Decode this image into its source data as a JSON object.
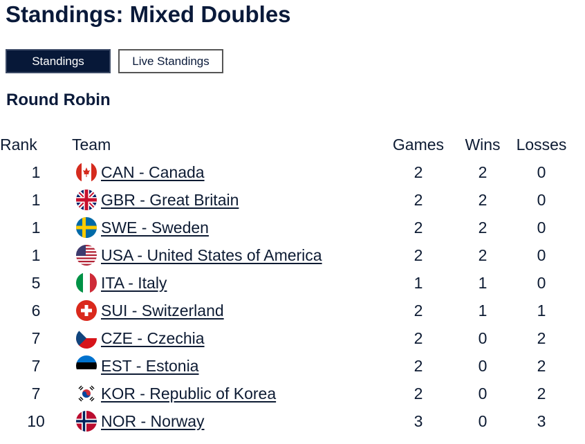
{
  "page": {
    "title": "Standings: Mixed Doubles"
  },
  "tabs": [
    {
      "label": "Standings",
      "active": true
    },
    {
      "label": "Live Standings",
      "active": false
    }
  ],
  "section": {
    "title": "Round Robin"
  },
  "table": {
    "headers": {
      "rank": "Rank",
      "team": "Team",
      "games": "Games",
      "wins": "Wins",
      "losses": "Losses"
    },
    "rows": [
      {
        "rank": "1",
        "team": "CAN - Canada",
        "flag": "canada-flag-icon",
        "games": "2",
        "wins": "2",
        "losses": "0"
      },
      {
        "rank": "1",
        "team": "GBR - Great Britain",
        "flag": "great-britain-flag-icon",
        "games": "2",
        "wins": "2",
        "losses": "0"
      },
      {
        "rank": "1",
        "team": "SWE - Sweden",
        "flag": "sweden-flag-icon",
        "games": "2",
        "wins": "2",
        "losses": "0"
      },
      {
        "rank": "1",
        "team": "USA - United States of America",
        "flag": "usa-flag-icon",
        "games": "2",
        "wins": "2",
        "losses": "0"
      },
      {
        "rank": "5",
        "team": "ITA - Italy",
        "flag": "italy-flag-icon",
        "games": "1",
        "wins": "1",
        "losses": "0"
      },
      {
        "rank": "6",
        "team": "SUI - Switzerland",
        "flag": "switzerland-flag-icon",
        "games": "2",
        "wins": "1",
        "losses": "1"
      },
      {
        "rank": "7",
        "team": "CZE - Czechia",
        "flag": "czechia-flag-icon",
        "games": "2",
        "wins": "0",
        "losses": "2"
      },
      {
        "rank": "7",
        "team": "EST - Estonia",
        "flag": "estonia-flag-icon",
        "games": "2",
        "wins": "0",
        "losses": "2"
      },
      {
        "rank": "7",
        "team": "KOR - Republic of Korea",
        "flag": "korea-flag-icon",
        "games": "2",
        "wins": "0",
        "losses": "2"
      },
      {
        "rank": "10",
        "team": "NOR - Norway",
        "flag": "norway-flag-icon",
        "games": "3",
        "wins": "0",
        "losses": "3"
      }
    ]
  },
  "colors": {
    "navy": "#071838",
    "text": "#0d1b33",
    "background": "#ffffff"
  }
}
